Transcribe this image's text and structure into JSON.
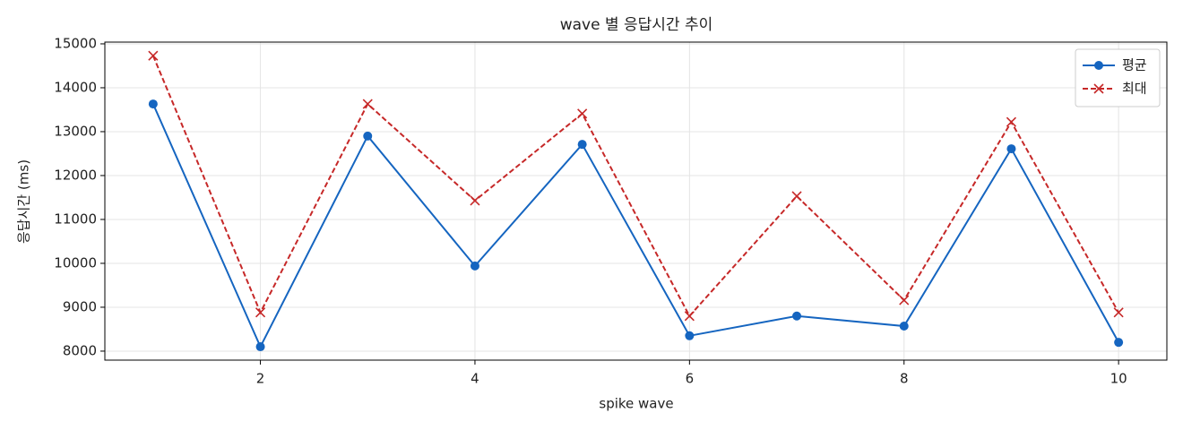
{
  "chart_data": {
    "type": "line",
    "title": "wave 별 응답시간 추이",
    "x_label": "spike wave",
    "y_label": "응답시간 (ms)",
    "x": [
      1,
      2,
      3,
      4,
      5,
      6,
      7,
      8,
      9,
      10
    ],
    "series": [
      {
        "name": "평균",
        "color": "#1565c0",
        "linestyle": "solid",
        "marker": "circle",
        "values": [
          13630,
          8100,
          12900,
          9940,
          12710,
          8350,
          8800,
          8570,
          12610,
          8200
        ]
      },
      {
        "name": "최대",
        "color": "#c62828",
        "linestyle": "dashed",
        "marker": "x",
        "values": [
          14730,
          8880,
          13630,
          11430,
          13410,
          8800,
          11530,
          9160,
          13220,
          8880
        ]
      }
    ],
    "xlim": [
      0.55,
      10.45
    ],
    "xticks": [
      2,
      4,
      6,
      8,
      10
    ],
    "ylim": [
      7795,
      15040
    ],
    "yticks": [
      8000,
      9000,
      10000,
      11000,
      12000,
      13000,
      14000,
      15000
    ],
    "grid": true,
    "legend": "upper-right"
  }
}
